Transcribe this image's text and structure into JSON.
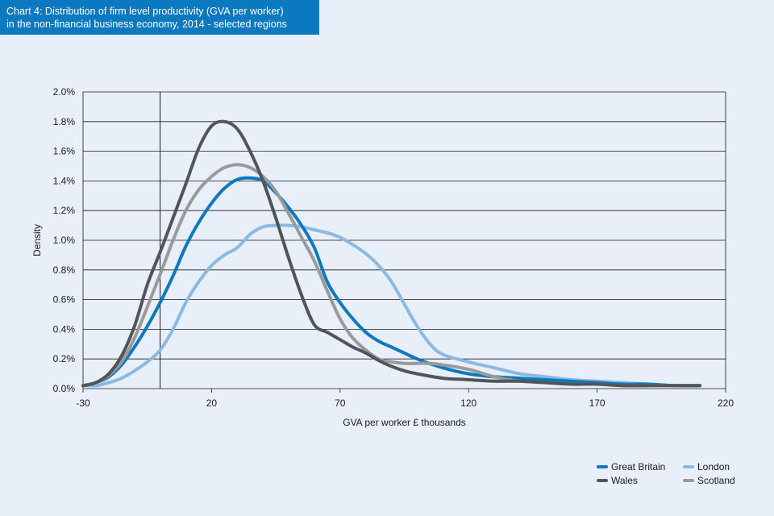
{
  "chart_data": {
    "type": "line",
    "title_line1": "Chart 4: Distribution of firm level productivity (GVA per worker)",
    "title_line2": "in the non-financial business economy, 2014 - selected regions",
    "xlabel": "GVA per worker £ thousands",
    "ylabel": "Density",
    "xlim": [
      -30,
      220
    ],
    "ylim": [
      0,
      2.0
    ],
    "x_ticks": [
      -30,
      20,
      70,
      120,
      170,
      220
    ],
    "x_tick_labels": [
      "-30",
      "20",
      "70",
      "120",
      "170",
      "220"
    ],
    "y_ticks": [
      0,
      0.2,
      0.4,
      0.6,
      0.8,
      1.0,
      1.2,
      1.4,
      1.6,
      1.8,
      2.0
    ],
    "y_tick_labels": [
      "0.0%",
      "0.2%",
      "0.4%",
      "0.6%",
      "0.8%",
      "1.0%",
      "1.2%",
      "1.4%",
      "1.6%",
      "1.8%",
      "2.0%"
    ],
    "vertical_reference_line_x": 0,
    "grid": "horizontal",
    "legend_position": "bottom-right",
    "series": [
      {
        "name": "Great Britain",
        "color": "#0b79bf",
        "points": [
          [
            -30,
            0.02
          ],
          [
            -25,
            0.04
          ],
          [
            -20,
            0.08
          ],
          [
            -15,
            0.16
          ],
          [
            -10,
            0.28
          ],
          [
            -5,
            0.42
          ],
          [
            0,
            0.58
          ],
          [
            5,
            0.76
          ],
          [
            10,
            0.96
          ],
          [
            15,
            1.12
          ],
          [
            20,
            1.25
          ],
          [
            25,
            1.35
          ],
          [
            30,
            1.41
          ],
          [
            35,
            1.42
          ],
          [
            40,
            1.4
          ],
          [
            45,
            1.32
          ],
          [
            50,
            1.22
          ],
          [
            55,
            1.1
          ],
          [
            60,
            0.95
          ],
          [
            65,
            0.72
          ],
          [
            70,
            0.58
          ],
          [
            75,
            0.47
          ],
          [
            80,
            0.38
          ],
          [
            85,
            0.32
          ],
          [
            90,
            0.28
          ],
          [
            95,
            0.24
          ],
          [
            100,
            0.2
          ],
          [
            110,
            0.14
          ],
          [
            120,
            0.1
          ],
          [
            130,
            0.08
          ],
          [
            140,
            0.07
          ],
          [
            150,
            0.06
          ],
          [
            160,
            0.05
          ],
          [
            170,
            0.04
          ],
          [
            180,
            0.03
          ],
          [
            190,
            0.03
          ],
          [
            200,
            0.02
          ],
          [
            210,
            0.02
          ]
        ]
      },
      {
        "name": "London",
        "color": "#8ab9e3",
        "points": [
          [
            -30,
            0.02
          ],
          [
            -25,
            0.02
          ],
          [
            -20,
            0.04
          ],
          [
            -15,
            0.07
          ],
          [
            -10,
            0.12
          ],
          [
            -5,
            0.18
          ],
          [
            0,
            0.26
          ],
          [
            5,
            0.4
          ],
          [
            10,
            0.58
          ],
          [
            15,
            0.72
          ],
          [
            20,
            0.83
          ],
          [
            25,
            0.9
          ],
          [
            30,
            0.95
          ],
          [
            35,
            1.04
          ],
          [
            40,
            1.09
          ],
          [
            45,
            1.1
          ],
          [
            50,
            1.1
          ],
          [
            55,
            1.09
          ],
          [
            60,
            1.07
          ],
          [
            65,
            1.05
          ],
          [
            70,
            1.02
          ],
          [
            75,
            0.97
          ],
          [
            80,
            0.91
          ],
          [
            85,
            0.83
          ],
          [
            90,
            0.72
          ],
          [
            95,
            0.57
          ],
          [
            100,
            0.42
          ],
          [
            105,
            0.3
          ],
          [
            110,
            0.23
          ],
          [
            120,
            0.18
          ],
          [
            130,
            0.14
          ],
          [
            140,
            0.1
          ],
          [
            150,
            0.08
          ],
          [
            160,
            0.06
          ],
          [
            170,
            0.05
          ],
          [
            180,
            0.04
          ],
          [
            190,
            0.03
          ],
          [
            200,
            0.02
          ],
          [
            210,
            0.02
          ]
        ]
      },
      {
        "name": "Wales",
        "color": "#505558",
        "points": [
          [
            -30,
            0.02
          ],
          [
            -25,
            0.04
          ],
          [
            -20,
            0.1
          ],
          [
            -15,
            0.22
          ],
          [
            -10,
            0.42
          ],
          [
            -5,
            0.7
          ],
          [
            0,
            0.92
          ],
          [
            5,
            1.15
          ],
          [
            10,
            1.38
          ],
          [
            15,
            1.62
          ],
          [
            20,
            1.77
          ],
          [
            25,
            1.8
          ],
          [
            30,
            1.75
          ],
          [
            35,
            1.6
          ],
          [
            40,
            1.4
          ],
          [
            45,
            1.15
          ],
          [
            50,
            0.88
          ],
          [
            55,
            0.63
          ],
          [
            60,
            0.43
          ],
          [
            65,
            0.38
          ],
          [
            70,
            0.33
          ],
          [
            75,
            0.28
          ],
          [
            80,
            0.24
          ],
          [
            85,
            0.19
          ],
          [
            90,
            0.15
          ],
          [
            95,
            0.12
          ],
          [
            100,
            0.1
          ],
          [
            110,
            0.07
          ],
          [
            120,
            0.06
          ],
          [
            130,
            0.05
          ],
          [
            140,
            0.05
          ],
          [
            150,
            0.04
          ],
          [
            160,
            0.03
          ],
          [
            170,
            0.03
          ],
          [
            180,
            0.02
          ],
          [
            190,
            0.02
          ],
          [
            200,
            0.02
          ],
          [
            210,
            0.02
          ]
        ]
      },
      {
        "name": "Scotland",
        "color": "#9a9a9a",
        "points": [
          [
            -30,
            0.02
          ],
          [
            -25,
            0.04
          ],
          [
            -20,
            0.09
          ],
          [
            -15,
            0.18
          ],
          [
            -10,
            0.34
          ],
          [
            -5,
            0.55
          ],
          [
            0,
            0.77
          ],
          [
            5,
            1.0
          ],
          [
            10,
            1.2
          ],
          [
            15,
            1.34
          ],
          [
            20,
            1.43
          ],
          [
            25,
            1.49
          ],
          [
            30,
            1.51
          ],
          [
            35,
            1.49
          ],
          [
            40,
            1.43
          ],
          [
            45,
            1.33
          ],
          [
            50,
            1.18
          ],
          [
            55,
            1.02
          ],
          [
            60,
            0.86
          ],
          [
            65,
            0.66
          ],
          [
            70,
            0.47
          ],
          [
            75,
            0.34
          ],
          [
            80,
            0.26
          ],
          [
            85,
            0.2
          ],
          [
            90,
            0.18
          ],
          [
            95,
            0.17
          ],
          [
            100,
            0.17
          ],
          [
            105,
            0.17
          ],
          [
            110,
            0.16
          ],
          [
            120,
            0.13
          ],
          [
            130,
            0.08
          ],
          [
            140,
            0.05
          ],
          [
            150,
            0.04
          ],
          [
            160,
            0.03
          ],
          [
            170,
            0.03
          ],
          [
            180,
            0.02
          ],
          [
            190,
            0.02
          ],
          [
            200,
            0.02
          ],
          [
            210,
            0.02
          ]
        ]
      }
    ]
  }
}
